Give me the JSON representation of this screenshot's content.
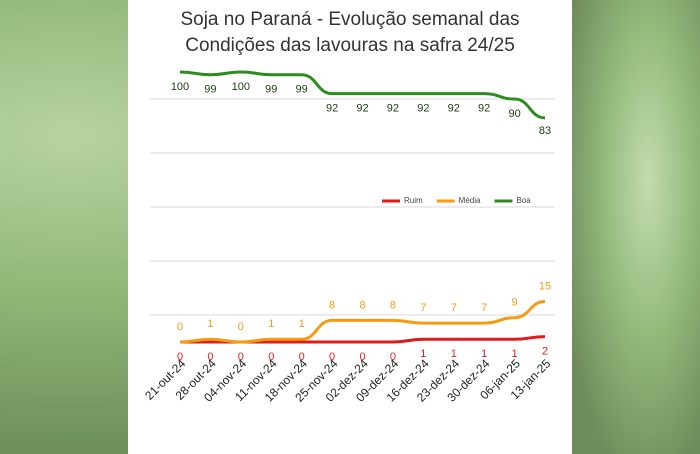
{
  "chart_data": {
    "type": "line",
    "title": [
      "Soja no Paraná - Evolução semanal das",
      "Condições das lavouras na safra 24/25"
    ],
    "categories": [
      "21-out-24",
      "28-out-24",
      "04-nov-24",
      "11-nov-24",
      "18-nov-24",
      "25-nov-24",
      "02-dez-24",
      "09-dez-24",
      "16-dez-24",
      "23-dez-24",
      "30-dez-24",
      "06-jan-25",
      "13-jan-25"
    ],
    "series": [
      {
        "name": "Ruim",
        "color": "#e31a1c",
        "values": [
          0,
          0,
          0,
          0,
          0,
          0,
          0,
          0,
          1,
          1,
          1,
          1,
          2
        ]
      },
      {
        "name": "Média",
        "color": "#f39c12",
        "values": [
          0,
          1,
          0,
          1,
          1,
          8,
          8,
          8,
          7,
          7,
          7,
          9,
          15
        ]
      },
      {
        "name": "Boa",
        "color": "#2e8b1f",
        "values": [
          100,
          99,
          100,
          99,
          99,
          92,
          92,
          92,
          92,
          92,
          92,
          90,
          83
        ]
      }
    ],
    "ylim": [
      -10,
      110
    ],
    "yticks": [
      10,
      30,
      50,
      70,
      90
    ],
    "grid": true,
    "legend": "center-right"
  }
}
